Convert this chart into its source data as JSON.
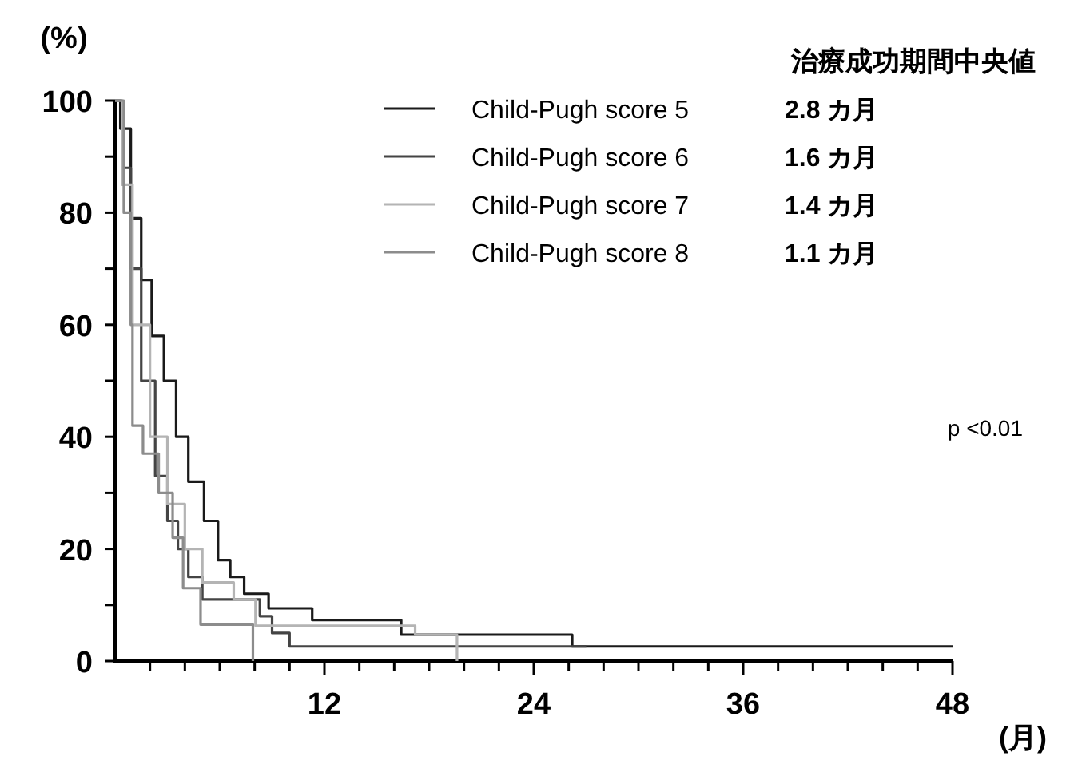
{
  "chart_data": {
    "type": "step",
    "ylabel": "(%)",
    "xlabel": "(月)",
    "legend_title": "治療成功期間中央値",
    "legend": "top right",
    "grid": false,
    "xlim": [
      0,
      48
    ],
    "ylim": [
      0,
      100
    ],
    "xticks": [
      {
        "value": 2,
        "label": null
      },
      {
        "value": 4,
        "label": null
      },
      {
        "value": 6,
        "label": null
      },
      {
        "value": 8,
        "label": null
      },
      {
        "value": 10,
        "label": null
      },
      12,
      {
        "value": 14,
        "label": null
      },
      {
        "value": 16,
        "label": null
      },
      {
        "value": 18,
        "label": null
      },
      {
        "value": 20,
        "label": null
      },
      {
        "value": 22,
        "label": null
      },
      24,
      {
        "value": 26,
        "label": null
      },
      {
        "value": 28,
        "label": null
      },
      {
        "value": 30,
        "label": null
      },
      {
        "value": 32,
        "label": null
      },
      {
        "value": 34,
        "label": null
      },
      36,
      {
        "value": 38,
        "label": null
      },
      {
        "value": 40,
        "label": null
      },
      {
        "value": 42,
        "label": null
      },
      {
        "value": 44,
        "label": null
      },
      {
        "value": 46,
        "label": null
      },
      48
    ],
    "yticks": [
      0,
      {
        "value": 10,
        "label": null
      },
      20,
      {
        "value": 30,
        "label": null
      },
      40,
      {
        "value": 50,
        "label": null
      },
      60,
      {
        "value": 70,
        "label": null
      },
      80,
      {
        "value": 90,
        "label": null
      },
      100
    ],
    "annotations": [
      "p <0.01",
      "2.8 カ月",
      "1.6 カ月",
      "1.4 カ月",
      "1.1 カ月"
    ],
    "series": [
      {
        "name": "Child-Pugh score 5",
        "color": "#1a1a1a",
        "x": [
          0,
          0.3,
          0.9,
          1.5,
          2.1,
          2.8,
          3.5,
          4.2,
          5.1,
          5.9,
          6.6,
          7.4,
          8.8,
          11.3,
          16.4,
          26.2,
          48
        ],
        "values": [
          100,
          95,
          79,
          68,
          58,
          50,
          40,
          32,
          25,
          18,
          15,
          12,
          9.4,
          7.3,
          4.7,
          2.6,
          2.6
        ]
      },
      {
        "name": "Child-Pugh score 6",
        "color": "#444444",
        "x": [
          0,
          0.4,
          0.9,
          1.5,
          2.3,
          3.0,
          3.6,
          4.2,
          5.0,
          8.3,
          9.0,
          10.0,
          27
        ],
        "values": [
          100,
          88,
          70,
          50,
          33,
          25,
          20,
          15,
          11,
          8,
          5,
          2.6,
          2.6
        ]
      },
      {
        "name": "Child-Pugh score 7",
        "color": "#b4b4b4",
        "x": [
          0,
          0.4,
          1.0,
          2.0,
          3.0,
          4.0,
          5.0,
          6.8,
          8.05,
          17.2,
          19.6
        ],
        "values": [
          100,
          85,
          60,
          40,
          28,
          20,
          14,
          11,
          6.3,
          4.7,
          0
        ]
      },
      {
        "name": "Child-Pugh score 8",
        "color": "#8c8c8c",
        "x": [
          0,
          0.5,
          0.9,
          1.0,
          1.6,
          2.5,
          3.3,
          3.9,
          4.9,
          7.9
        ],
        "values": [
          100,
          80,
          60,
          42,
          37,
          30,
          22,
          13,
          6.5,
          0
        ]
      }
    ]
  }
}
